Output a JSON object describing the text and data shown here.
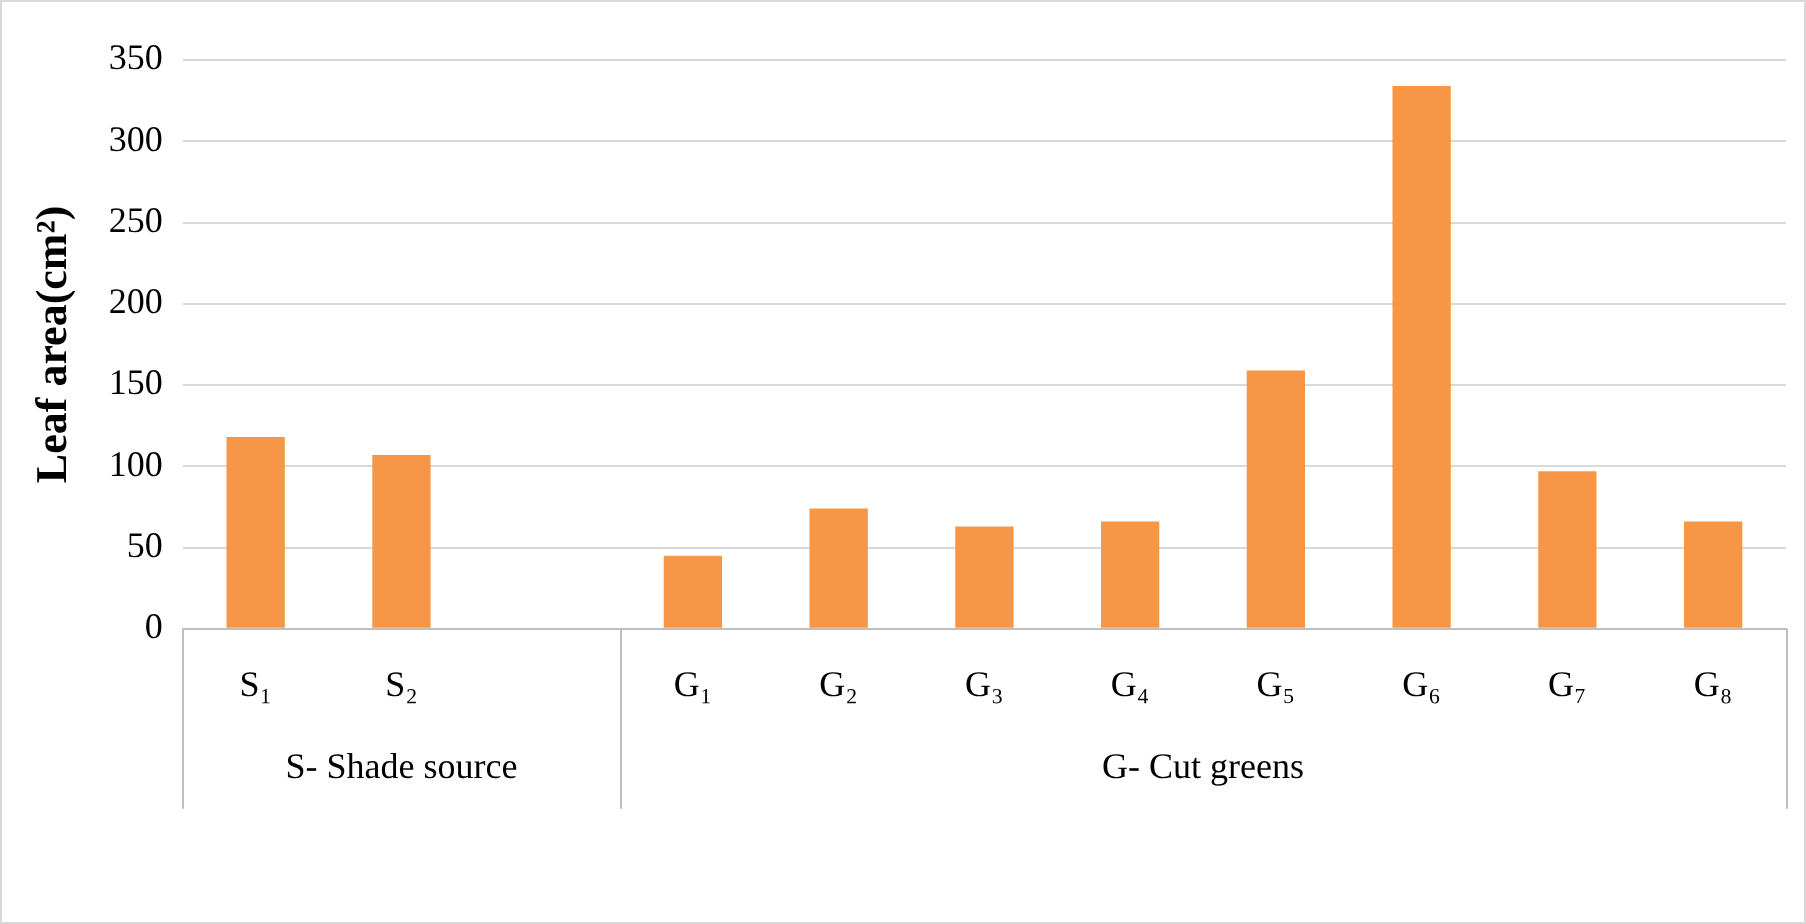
{
  "chart_data": {
    "type": "bar",
    "ylabel": "Leaf area(cm²)",
    "categories": [
      "S₁",
      "S₂",
      null,
      "G₁",
      "G₂",
      "G₃",
      "G₄",
      "G₅",
      "G₆",
      "G₇",
      "G₈"
    ],
    "values": [
      118,
      107,
      null,
      45,
      74,
      63,
      66,
      159,
      334,
      97,
      66
    ],
    "color": "#f79646",
    "ylim": [
      0,
      350
    ],
    "yticks": [
      0,
      50,
      100,
      150,
      200,
      250,
      300,
      350
    ],
    "grid": "y",
    "legend": false,
    "annotations": [
      "S- Shade source",
      "G- Cut greens"
    ]
  }
}
